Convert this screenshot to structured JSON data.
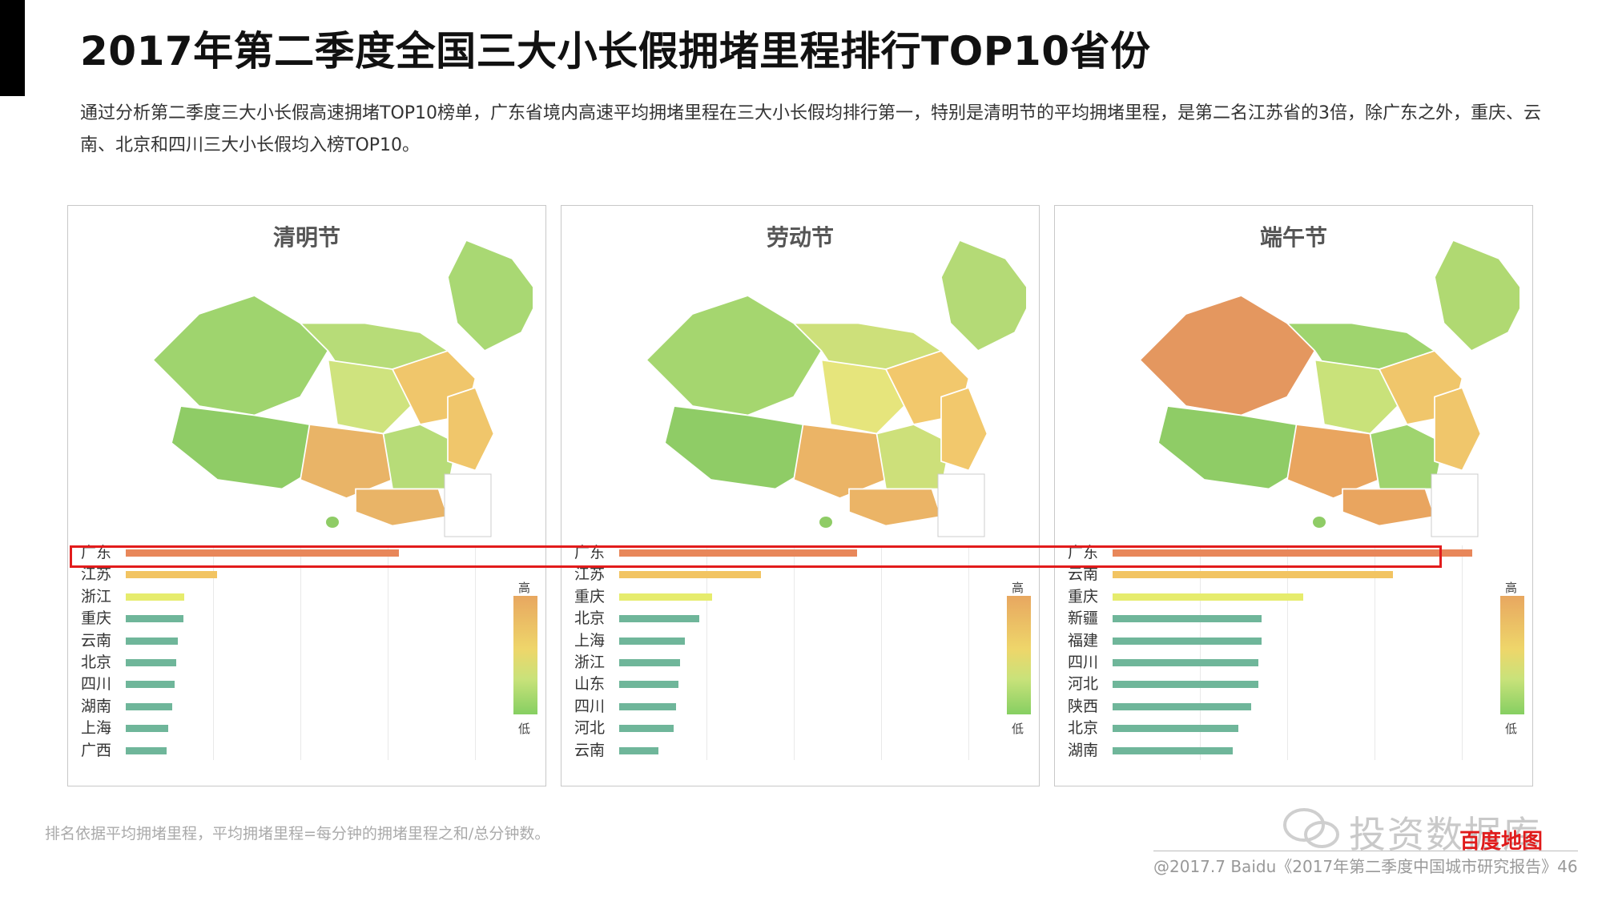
{
  "title": "2017年第二季度全国三大小长假拥堵里程排行TOP10省份",
  "description": "通过分析第二季度三大小长假高速拥堵TOP10榜单，广东省境内高速平均拥堵里程在三大小长假均排行第一，特别是清明节的平均拥堵里程，是第二名江苏省的3倍，除广东之外，重庆、云南、北京和四川三大小长假均入榜TOP10。",
  "legend": {
    "high": "高",
    "low": "低"
  },
  "colors": {
    "top": "#e8875a",
    "second": "#f2c462",
    "third": "#e6ec6d",
    "rest": "#6fb69a",
    "highlight": "#e21c1c"
  },
  "chart_data": [
    {
      "type": "bar",
      "title": "清明节",
      "categories": [
        "广东",
        "江苏",
        "浙江",
        "重庆",
        "云南",
        "北京",
        "四川",
        "湖南",
        "上海",
        "广西"
      ],
      "values": [
        100,
        33.5,
        21.5,
        21,
        19,
        18.5,
        18,
        17,
        15.5,
        15
      ],
      "xlim": [
        0,
        129
      ]
    },
    {
      "type": "bar",
      "title": "劳动节",
      "categories": [
        "广东",
        "江苏",
        "重庆",
        "北京",
        "上海",
        "浙江",
        "山东",
        "四川",
        "河北",
        "云南"
      ],
      "values": [
        100,
        59.5,
        39,
        33.5,
        27.5,
        25.5,
        25,
        24,
        23,
        16.5
      ],
      "xlim": [
        0,
        148
      ]
    },
    {
      "type": "bar",
      "title": "端午节",
      "categories": [
        "广东",
        "云南",
        "重庆",
        "新疆",
        "福建",
        "四川",
        "河北",
        "陕西",
        "北京",
        "湖南"
      ],
      "values": [
        100,
        78,
        53,
        41.5,
        41.5,
        40.5,
        40.5,
        38.5,
        35,
        33.5
      ],
      "xlim": [
        0,
        98
      ]
    }
  ],
  "footnote": "排名依据平均拥堵里程，平均拥堵里程=每分钟的拥堵里程之和/总分钟数。",
  "watermark": "投资数据库",
  "brand": "百度地图",
  "source": "@2017.7 Baidu《2017年第二季度中国城市研究报告》46"
}
